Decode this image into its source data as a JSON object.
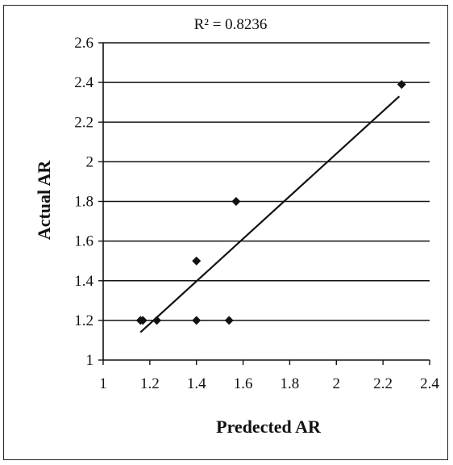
{
  "chart_data": {
    "type": "scatter",
    "annotation": "R² = 0.8236",
    "xlabel": "Predected AR",
    "ylabel": "Actual AR",
    "xlim": [
      1,
      2.4
    ],
    "ylim": [
      1,
      2.6
    ],
    "xticks": [
      1,
      1.2,
      1.4,
      1.6,
      1.8,
      2,
      2.2,
      2.4
    ],
    "yticks": [
      1,
      1.2,
      1.4,
      1.6,
      1.8,
      2,
      2.2,
      2.4,
      2.6
    ],
    "xtick_labels": [
      "1",
      "1.2",
      "1.4",
      "1.6",
      "1.8",
      "2",
      "2.2",
      "2.4"
    ],
    "ytick_labels": [
      "1",
      "1.2",
      "1.4",
      "1.6",
      "1.8",
      "2",
      "2.2",
      "2.4",
      "2.6"
    ],
    "grid": "horizontal",
    "points": [
      {
        "x": 1.16,
        "y": 1.2
      },
      {
        "x": 1.17,
        "y": 1.2
      },
      {
        "x": 1.23,
        "y": 1.2
      },
      {
        "x": 1.4,
        "y": 1.2
      },
      {
        "x": 1.54,
        "y": 1.2
      },
      {
        "x": 1.4,
        "y": 1.5
      },
      {
        "x": 1.57,
        "y": 1.8
      },
      {
        "x": 2.28,
        "y": 2.39
      }
    ],
    "trendline": {
      "x": [
        1.16,
        2.27
      ],
      "y": [
        1.14,
        2.33
      ]
    },
    "colors": {
      "marker": "#111111",
      "line": "#111111",
      "grid": "#111111"
    }
  }
}
